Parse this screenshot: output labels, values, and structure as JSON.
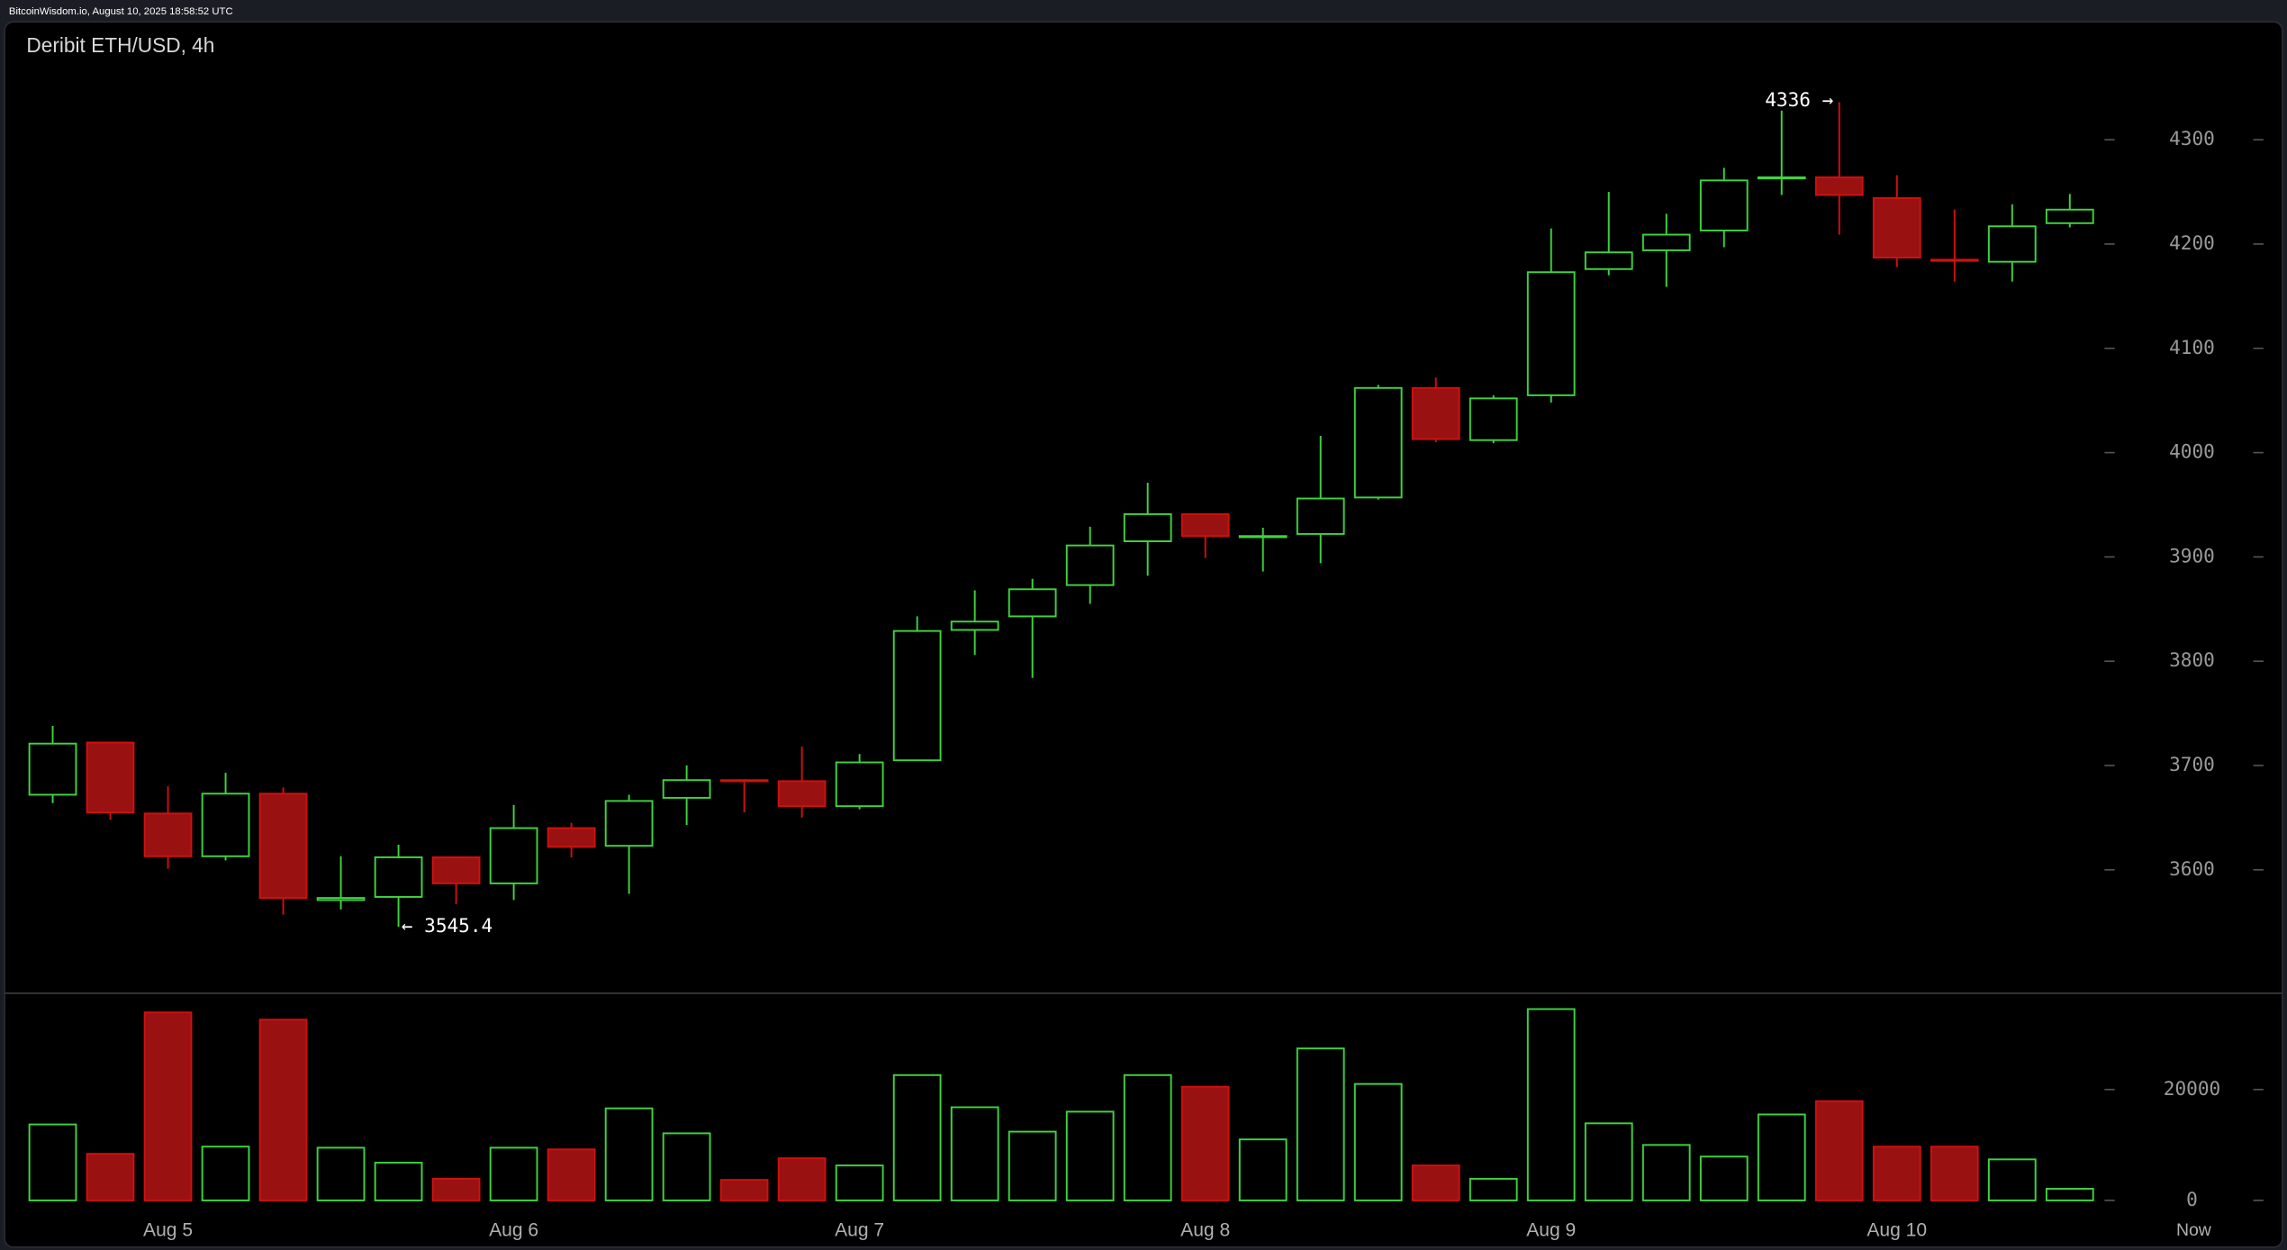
{
  "header": "BitcoinWisdom.io, August 10, 2025 18:58:52 UTC",
  "chart_data": {
    "type": "candlestick",
    "title": "Deribit ETH/USD, 4h",
    "categories": [
      null,
      null,
      "Aug 5",
      null,
      null,
      null,
      null,
      null,
      "Aug 6",
      null,
      null,
      null,
      null,
      null,
      "Aug 7",
      null,
      null,
      null,
      null,
      null,
      "Aug 8",
      null,
      null,
      null,
      null,
      null,
      "Aug 9",
      null,
      null,
      null,
      null,
      null,
      "Aug 10",
      null,
      null,
      null
    ],
    "now_label": "Now",
    "open": [
      3672,
      3722,
      3654,
      3613,
      3673,
      3571,
      3574,
      3612,
      3587,
      3640,
      3623,
      3669,
      3686,
      3685,
      3661,
      3705,
      3830,
      3843,
      3873,
      3915,
      3941,
      3919,
      3922,
      3957,
      4062,
      4012,
      4055,
      4176,
      4194,
      4213,
      4263,
      4264,
      4244,
      4185,
      4183,
      4220
    ],
    "high": [
      3738,
      3722,
      3680,
      3693,
      3679,
      3613,
      3624,
      3613,
      3662,
      3645,
      3672,
      3700,
      3687,
      3718,
      3711,
      3843,
      3868,
      3879,
      3929,
      3971,
      3941,
      3928,
      4016,
      4065,
      4072,
      4055,
      4215,
      4250,
      4229,
      4273,
      4328,
      4336,
      4266,
      4233,
      4238,
      4248
    ],
    "low": [
      3664,
      3648,
      3601,
      3609,
      3557,
      3562,
      3545.4,
      3567,
      3571,
      3612,
      3577,
      3643,
      3655,
      3650,
      3658,
      3705,
      3806,
      3784,
      3855,
      3882,
      3899,
      3886,
      3894,
      3955,
      4010,
      4009,
      4048,
      4170,
      4159,
      4197,
      4247,
      4209,
      4178,
      4164,
      4164,
      4216
    ],
    "close": [
      3721,
      3655,
      3613,
      3673,
      3573,
      3573,
      3612,
      3587,
      3640,
      3622,
      3666,
      3686,
      3685,
      3661,
      3703,
      3829,
      3838,
      3869,
      3911,
      3941,
      3920,
      3920,
      3956,
      4062,
      4013,
      4052,
      4173,
      4192,
      4209,
      4261,
      4264,
      4247,
      4187,
      4184,
      4217,
      4233
    ],
    "volume": [
      13700,
      8400,
      33900,
      9700,
      32600,
      9500,
      6800,
      3900,
      9500,
      9200,
      16600,
      12100,
      3700,
      7600,
      6300,
      22600,
      16800,
      12400,
      16000,
      22600,
      20500,
      11000,
      27400,
      21000,
      6300,
      3900,
      34500,
      13900,
      10000,
      7900,
      15500,
      17900,
      9700,
      9700,
      7400,
      2100
    ],
    "up_color": "#3fd33f",
    "down_color": "#d01010",
    "down_fill": "#9a1111",
    "ylim": [
      3483,
      4413
    ],
    "yticks": [
      3600,
      3700,
      3800,
      3900,
      4000,
      4100,
      4200,
      4300
    ],
    "volume_ylim": [
      0,
      37350
    ],
    "volume_yticks": [
      0,
      20000
    ],
    "annotations": [
      {
        "label": "4336 →",
        "value": 4336
      },
      {
        "label": "← 3545.4",
        "value": 3545.4
      }
    ]
  }
}
